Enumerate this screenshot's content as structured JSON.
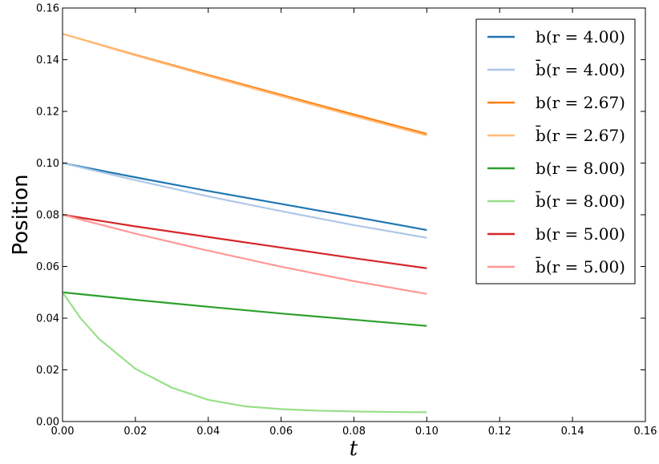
{
  "chart_data": {
    "type": "line",
    "xlabel": "t",
    "ylabel": "Position",
    "xlim": [
      0.0,
      0.16
    ],
    "ylim": [
      0.0,
      0.16
    ],
    "xticks": [
      "0.00",
      "0.02",
      "0.04",
      "0.06",
      "0.08",
      "0.10",
      "0.12",
      "0.14",
      "0.16"
    ],
    "yticks": [
      "0.00",
      "0.02",
      "0.04",
      "0.06",
      "0.08",
      "0.10",
      "0.12",
      "0.14",
      "0.16"
    ],
    "grid": false,
    "legend_position": "top-right",
    "series": [
      {
        "name": "b(r = 4.00)",
        "color": "#1f77b4",
        "x": [
          0.0,
          0.02,
          0.04,
          0.06,
          0.08,
          0.1
        ],
        "y": [
          0.1,
          0.0945,
          0.0892,
          0.0842,
          0.0792,
          0.0741
        ]
      },
      {
        "name": "b̄(r = 4.00)",
        "color": "#aec7e8",
        "x": [
          0.0,
          0.02,
          0.04,
          0.06,
          0.08,
          0.1
        ],
        "y": [
          0.1,
          0.0934,
          0.0871,
          0.0814,
          0.076,
          0.0711
        ]
      },
      {
        "name": "b(r = 2.67)",
        "color": "#ff7f0e",
        "x": [
          0.0,
          0.02,
          0.04,
          0.06,
          0.08,
          0.1
        ],
        "y": [
          0.15,
          0.1419,
          0.1341,
          0.1264,
          0.1188,
          0.1113
        ]
      },
      {
        "name": "b̄(r = 2.67)",
        "color": "#ffbb78",
        "x": [
          0.0,
          0.02,
          0.04,
          0.06,
          0.08,
          0.1
        ],
        "y": [
          0.15,
          0.1417,
          0.1337,
          0.1259,
          0.1182,
          0.1107
        ]
      },
      {
        "name": "b(r = 8.00)",
        "color": "#2ca02c",
        "x": [
          0.0,
          0.02,
          0.04,
          0.06,
          0.08,
          0.1
        ],
        "y": [
          0.05,
          0.0471,
          0.0444,
          0.0418,
          0.0394,
          0.037
        ]
      },
      {
        "name": "b̄(r = 8.00)",
        "color": "#98df8a",
        "x": [
          0.0,
          0.005,
          0.01,
          0.02,
          0.03,
          0.04,
          0.05,
          0.06,
          0.07,
          0.08,
          0.09,
          0.1
        ],
        "y": [
          0.05,
          0.0399,
          0.032,
          0.0204,
          0.0131,
          0.0084,
          0.0059,
          0.0048,
          0.0042,
          0.0039,
          0.0037,
          0.0036
        ]
      },
      {
        "name": "b(r = 5.00)",
        "color": "#d62728",
        "x": [
          0.0,
          0.02,
          0.04,
          0.06,
          0.08,
          0.1
        ],
        "y": [
          0.08,
          0.0755,
          0.0714,
          0.0673,
          0.0632,
          0.0593
        ]
      },
      {
        "name": "b̄(r = 5.00)",
        "color": "#ff9896",
        "x": [
          0.0,
          0.02,
          0.04,
          0.06,
          0.08,
          0.1
        ],
        "y": [
          0.08,
          0.0727,
          0.0661,
          0.0599,
          0.0543,
          0.0494
        ]
      }
    ]
  }
}
